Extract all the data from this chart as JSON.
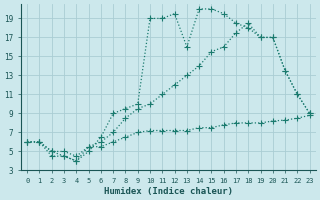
{
  "xlabel": "Humidex (Indice chaleur)",
  "bg_color": "#cce8ec",
  "grid_color": "#aacdd4",
  "line_color": "#1a7a6e",
  "xlim": [
    -0.5,
    23.5
  ],
  "ylim": [
    3,
    20.5
  ],
  "xticks": [
    0,
    1,
    2,
    3,
    4,
    5,
    6,
    7,
    8,
    9,
    10,
    11,
    12,
    13,
    14,
    15,
    16,
    17,
    18,
    19,
    20,
    21,
    22,
    23
  ],
  "yticks": [
    3,
    5,
    7,
    9,
    11,
    13,
    15,
    17,
    19
  ],
  "top_x": [
    0,
    1,
    2,
    3,
    4,
    5,
    6,
    7,
    8,
    9,
    10,
    11,
    12,
    13,
    14,
    15,
    16,
    17,
    18,
    19,
    20,
    21,
    22,
    23
  ],
  "top_y": [
    6,
    6,
    5,
    4.5,
    4,
    5,
    6.5,
    9,
    9.5,
    10,
    19,
    19,
    19.5,
    16,
    20,
    20,
    19.5,
    18.5,
    18,
    17,
    17,
    13.5,
    11,
    9
  ],
  "mid_x": [
    0,
    1,
    2,
    3,
    4,
    5,
    6,
    7,
    8,
    9,
    10,
    11,
    12,
    13,
    14,
    15,
    16,
    17,
    18,
    19,
    20,
    21,
    22,
    23
  ],
  "mid_y": [
    6,
    6,
    5,
    5,
    4.5,
    5.5,
    6,
    7,
    8.5,
    9.5,
    10,
    11,
    12,
    13,
    14,
    15.5,
    16,
    17.5,
    18.5,
    17,
    17,
    13.5,
    11,
    9
  ],
  "bot_x": [
    0,
    1,
    2,
    3,
    4,
    5,
    6,
    7,
    8,
    9,
    10,
    11,
    12,
    13,
    14,
    15,
    16,
    17,
    18,
    19,
    20,
    21,
    22,
    23
  ],
  "bot_y": [
    6,
    6,
    4.5,
    4.5,
    4,
    5.5,
    5.5,
    6,
    6.5,
    7,
    7.2,
    7.2,
    7.2,
    7.2,
    7.5,
    7.5,
    7.8,
    8,
    8,
    8,
    8.2,
    8.3,
    8.5,
    8.8
  ]
}
